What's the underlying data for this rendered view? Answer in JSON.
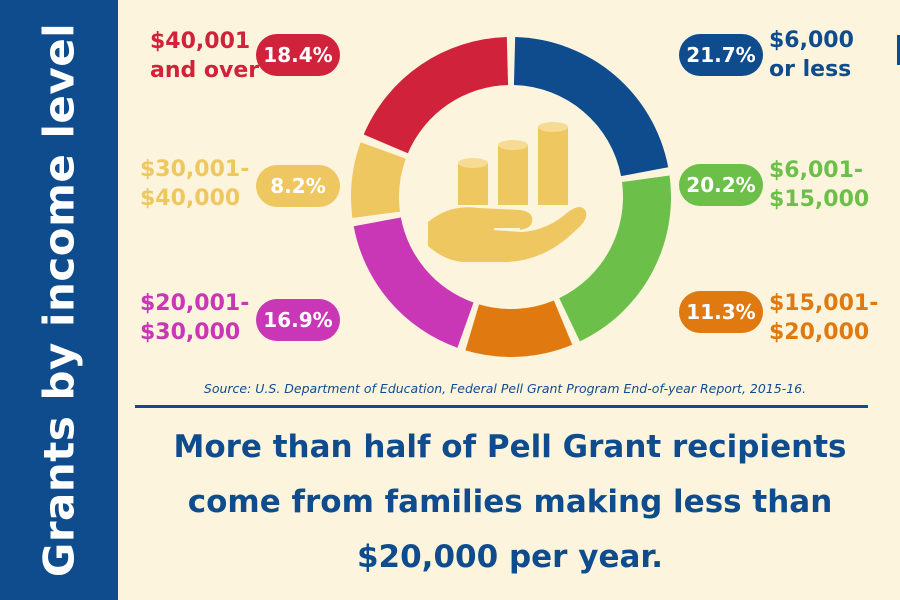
{
  "sidebar": {
    "title": "Grants by income level"
  },
  "chart_data": {
    "type": "pie",
    "categories": [
      "$6,000 or less",
      "$6,001-$15,000",
      "$15,001-$20,000",
      "$20,001-$30,000",
      "$30,001-$40,000",
      "$40,001 and over"
    ],
    "values": [
      21.7,
      20.2,
      11.3,
      16.9,
      8.2,
      18.4
    ],
    "value_labels": [
      "21.7%",
      "20.2%",
      "11.3%",
      "16.9%",
      "8.2%",
      "18.4%"
    ],
    "category_lines": [
      [
        "$6,000",
        "or less"
      ],
      [
        "$6,001-",
        "$15,000"
      ],
      [
        "$15,001-",
        "$20,000"
      ],
      [
        "$20,001-",
        "$30,000"
      ],
      [
        "$30,001-",
        "$40,000"
      ],
      [
        "$40,001",
        "and over"
      ]
    ],
    "colors": [
      "#0f4c8e",
      "#6cc04a",
      "#e07a10",
      "#c936b6",
      "#efc761",
      "#d0223a"
    ],
    "style": "donut",
    "center_icon": "hand-holding-coins-icon"
  },
  "source": "Source: U.S. Department of Education, Federal Pell Grant Program End-of-year Report, 2015-16.",
  "headline": {
    "line1": "More than half of Pell Grant recipients",
    "line2": "come from families making less than",
    "line3": "$20,000 per year."
  },
  "icon_color": "#efc761"
}
